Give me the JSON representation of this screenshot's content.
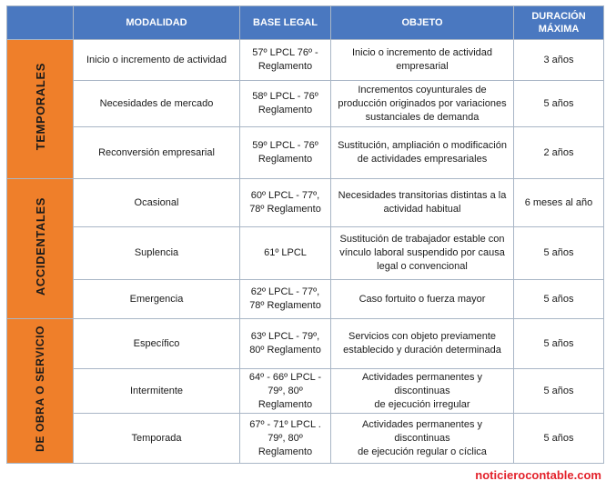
{
  "headers": {
    "modalidad": "MODALIDAD",
    "base_legal": "BASE LEGAL",
    "objeto": "OBJETO",
    "duracion": "DURACIÓN\nMÁXIMA"
  },
  "groups": {
    "temporales": "TEMPORALES",
    "accidentales": "ACCIDENTALES",
    "obra": "DE OBRA O SERVICIO"
  },
  "rows": [
    {
      "modalidad": "Inicio o incremento de actividad",
      "base_legal": "57º LPCL 76º -\nReglamento",
      "objeto": "Inicio o incremento de actividad\nempresarial",
      "duracion": "3 años"
    },
    {
      "modalidad": "Necesidades de mercado",
      "base_legal": "58º LPCL - 76º\nReglamento",
      "objeto": "Incrementos coyunturales de\nproducción originados por variaciones\nsustanciales de  demanda",
      "duracion": "5 años"
    },
    {
      "modalidad": "Reconversión empresarial",
      "base_legal": "59º LPCL - 76º\nReglamento",
      "objeto": "Sustitución, ampliación o modificación\nde actividades empresariales",
      "duracion": "2 años"
    },
    {
      "modalidad": "Ocasional",
      "base_legal": "60º LPCL - 77º,\n78º Reglamento",
      "objeto": "Necesidades transitorias distintas a la\nactividad habitual",
      "duracion": "6 meses al año"
    },
    {
      "modalidad": "Suplencia",
      "base_legal": "61º LPCL",
      "objeto": "Sustitución de trabajador estable con\nvínculo laboral suspendido por causa\nlegal o convencional",
      "duracion": "5 años"
    },
    {
      "modalidad": "Emergencia",
      "base_legal": "62º LPCL - 77º,\n78º Reglamento",
      "objeto": "Caso fortuito o fuerza mayor",
      "duracion": "5 años"
    },
    {
      "modalidad": "Específico",
      "base_legal": "63º LPCL - 79º,\n80º Reglamento",
      "objeto": "Servicios con objeto previamente\nestablecido y duración determinada",
      "duracion": "5 años"
    },
    {
      "modalidad": "Intermitente",
      "base_legal": "64º - 66º LPCL -\n79º, 80º\nReglamento",
      "objeto": "Actividades permanentes y discontinuas\nde ejecución irregular",
      "duracion": "5 años"
    },
    {
      "modalidad": "Temporada",
      "base_legal": "67º - 71º LPCL .\n79º, 80º\nReglamento",
      "objeto": "Actividades permanentes y discontinuas\nde ejecución regular o cíclica",
      "duracion": "5 años"
    }
  ],
  "source": "noticierocontable.com",
  "colors": {
    "header_bg": "#4a78c0",
    "group_bg": "#ef7f2a",
    "source_text": "#e3222b"
  }
}
